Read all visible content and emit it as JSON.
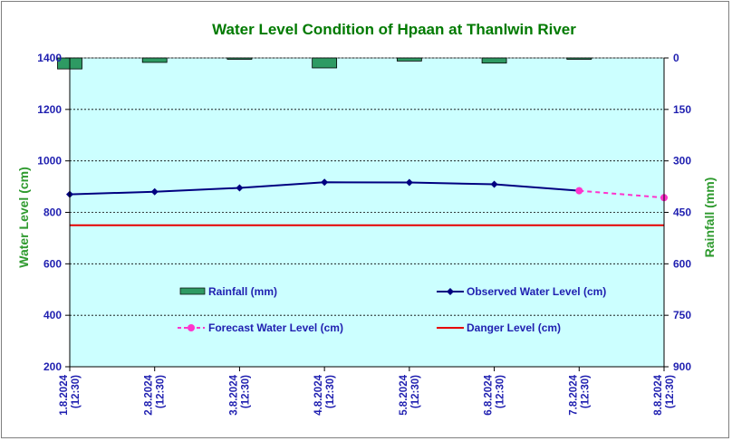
{
  "chart_data": {
    "type": "line",
    "title": "Water Level Condition of Hpaan at Thanlwin River",
    "ylabel": "Water Level (cm)",
    "y2label": "Rainfall (mm)",
    "ylim": [
      200,
      1400
    ],
    "yticks": [
      "200",
      "400",
      "600",
      "800",
      "1000",
      "1200",
      "1400"
    ],
    "y2lim": [
      0,
      900
    ],
    "y2ticks": [
      "0",
      "150",
      "300",
      "450",
      "600",
      "750",
      "900"
    ],
    "y2_inverted": true,
    "grid": true,
    "x": [
      [
        "1.8.2024",
        "(12:30)"
      ],
      [
        "2.8.2024",
        "(12:30)"
      ],
      [
        "3.8.2024",
        "(12:30)"
      ],
      [
        "4.8.2024",
        "(12:30)"
      ],
      [
        "5.8.2024",
        "(12:30)"
      ],
      [
        "6.8.2024",
        "(12:30)"
      ],
      [
        "7.8.2024",
        "(12:30)"
      ],
      [
        "8.8.2024",
        "(12:30)"
      ]
    ],
    "series": [
      {
        "name": "Rainfall (mm)",
        "kind": "bar",
        "axis": "right",
        "color": "#2e9a63",
        "values": [
          32,
          13,
          1,
          29,
          9,
          15,
          2,
          null
        ]
      },
      {
        "name": "Observed Water Level (cm)",
        "kind": "line",
        "axis": "left",
        "color": "#000080",
        "values": [
          870,
          880,
          895,
          917,
          916,
          909,
          884,
          null
        ]
      },
      {
        "name": "Forecast Water Level (cm)",
        "kind": "dashed-line",
        "axis": "left",
        "color": "#ff33cc",
        "values": [
          null,
          null,
          null,
          null,
          null,
          null,
          884,
          857
        ]
      },
      {
        "name": "Danger Level (cm)",
        "kind": "line",
        "axis": "left",
        "color": "#e60000",
        "values": [
          750,
          750,
          750,
          750,
          750,
          750,
          750,
          750
        ]
      }
    ],
    "legend": "inside-bottom"
  }
}
